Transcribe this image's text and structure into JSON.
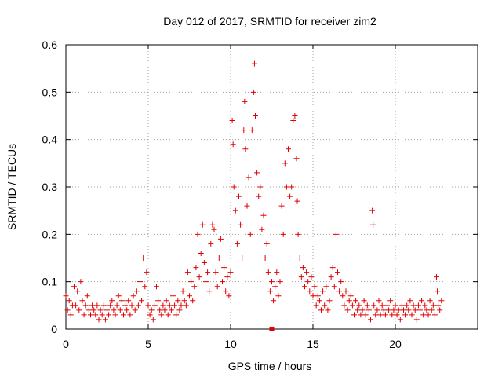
{
  "chart_data": {
    "type": "scatter",
    "title": "Day 012 of 2017, SRMTID for receiver zim2",
    "xlabel": "GPS time / hours",
    "ylabel": "SRMTID / TECUs",
    "xlim": [
      0,
      25
    ],
    "ylim": [
      0,
      0.6
    ],
    "xticks": [
      0,
      5,
      10,
      15,
      20
    ],
    "xtick_labels": [
      "0",
      "5",
      "10",
      "15",
      "20"
    ],
    "yticks": [
      0,
      0.1,
      0.2,
      0.3,
      0.4,
      0.5,
      0.6
    ],
    "ytick_labels": [
      "0",
      "0.1",
      "0.2",
      "0.3",
      "0.4",
      "0.5",
      "0.6"
    ],
    "grid": true,
    "marker": "+",
    "color": "#e00000",
    "series": [
      {
        "name": "SRMTID",
        "points": [
          [
            0.0,
            0.07
          ],
          [
            0.1,
            0.04
          ],
          [
            0.2,
            0.06
          ],
          [
            0.3,
            0.03
          ],
          [
            0.4,
            0.05
          ],
          [
            0.5,
            0.09
          ],
          [
            0.6,
            0.05
          ],
          [
            0.7,
            0.08
          ],
          [
            0.8,
            0.04
          ],
          [
            0.9,
            0.1
          ],
          [
            1.0,
            0.06
          ],
          [
            1.1,
            0.03
          ],
          [
            1.2,
            0.05
          ],
          [
            1.3,
            0.07
          ],
          [
            1.4,
            0.04
          ],
          [
            1.5,
            0.03
          ],
          [
            1.6,
            0.05
          ],
          [
            1.7,
            0.04
          ],
          [
            1.8,
            0.03
          ],
          [
            1.9,
            0.05
          ],
          [
            2.0,
            0.02
          ],
          [
            2.1,
            0.04
          ],
          [
            2.2,
            0.03
          ],
          [
            2.3,
            0.05
          ],
          [
            2.4,
            0.02
          ],
          [
            2.5,
            0.04
          ],
          [
            2.6,
            0.03
          ],
          [
            2.7,
            0.05
          ],
          [
            2.8,
            0.06
          ],
          [
            2.9,
            0.04
          ],
          [
            3.0,
            0.03
          ],
          [
            3.1,
            0.05
          ],
          [
            3.2,
            0.07
          ],
          [
            3.3,
            0.04
          ],
          [
            3.4,
            0.06
          ],
          [
            3.5,
            0.03
          ],
          [
            3.6,
            0.05
          ],
          [
            3.7,
            0.04
          ],
          [
            3.8,
            0.06
          ],
          [
            3.9,
            0.03
          ],
          [
            4.0,
            0.05
          ],
          [
            4.1,
            0.07
          ],
          [
            4.2,
            0.04
          ],
          [
            4.3,
            0.08
          ],
          [
            4.4,
            0.05
          ],
          [
            4.5,
            0.1
          ],
          [
            4.6,
            0.06
          ],
          [
            4.7,
            0.15
          ],
          [
            4.8,
            0.09
          ],
          [
            4.9,
            0.12
          ],
          [
            5.0,
            0.05
          ],
          [
            5.1,
            0.03
          ],
          [
            5.2,
            0.04
          ],
          [
            5.3,
            0.02
          ],
          [
            5.4,
            0.05
          ],
          [
            5.5,
            0.09
          ],
          [
            5.6,
            0.06
          ],
          [
            5.7,
            0.04
          ],
          [
            5.8,
            0.03
          ],
          [
            5.9,
            0.05
          ],
          [
            6.0,
            0.04
          ],
          [
            6.1,
            0.06
          ],
          [
            6.2,
            0.03
          ],
          [
            6.3,
            0.05
          ],
          [
            6.4,
            0.04
          ],
          [
            6.5,
            0.07
          ],
          [
            6.6,
            0.05
          ],
          [
            6.7,
            0.03
          ],
          [
            6.8,
            0.06
          ],
          [
            6.9,
            0.04
          ],
          [
            7.0,
            0.05
          ],
          [
            7.1,
            0.08
          ],
          [
            7.2,
            0.06
          ],
          [
            7.3,
            0.05
          ],
          [
            7.4,
            0.12
          ],
          [
            7.5,
            0.07
          ],
          [
            7.6,
            0.1
          ],
          [
            7.7,
            0.06
          ],
          [
            7.8,
            0.09
          ],
          [
            7.9,
            0.13
          ],
          [
            8.0,
            0.2
          ],
          [
            8.1,
            0.11
          ],
          [
            8.2,
            0.16
          ],
          [
            8.3,
            0.22
          ],
          [
            8.4,
            0.14
          ],
          [
            8.5,
            0.1
          ],
          [
            8.6,
            0.12
          ],
          [
            8.7,
            0.08
          ],
          [
            8.8,
            0.18
          ],
          [
            8.9,
            0.22
          ],
          [
            9.0,
            0.21
          ],
          [
            9.1,
            0.12
          ],
          [
            9.2,
            0.09
          ],
          [
            9.3,
            0.15
          ],
          [
            9.4,
            0.19
          ],
          [
            9.5,
            0.1
          ],
          [
            9.6,
            0.13
          ],
          [
            9.7,
            0.08
          ],
          [
            9.8,
            0.11
          ],
          [
            9.9,
            0.07
          ],
          [
            10.0,
            0.12
          ],
          [
            10.1,
            0.44
          ],
          [
            10.15,
            0.39
          ],
          [
            10.2,
            0.3
          ],
          [
            10.3,
            0.25
          ],
          [
            10.4,
            0.18
          ],
          [
            10.5,
            0.28
          ],
          [
            10.6,
            0.22
          ],
          [
            10.7,
            0.15
          ],
          [
            10.8,
            0.42
          ],
          [
            10.85,
            0.48
          ],
          [
            10.9,
            0.38
          ],
          [
            11.0,
            0.26
          ],
          [
            11.1,
            0.32
          ],
          [
            11.2,
            0.2
          ],
          [
            11.3,
            0.42
          ],
          [
            11.4,
            0.5
          ],
          [
            11.45,
            0.56
          ],
          [
            11.5,
            0.45
          ],
          [
            11.6,
            0.33
          ],
          [
            11.7,
            0.28
          ],
          [
            11.8,
            0.3
          ],
          [
            11.9,
            0.21
          ],
          [
            12.0,
            0.24
          ],
          [
            12.1,
            0.15
          ],
          [
            12.2,
            0.18
          ],
          [
            12.3,
            0.12
          ],
          [
            12.4,
            0.08
          ],
          [
            12.5,
            0.1
          ],
          [
            12.6,
            0.06
          ],
          [
            12.7,
            0.09
          ],
          [
            12.8,
            0.12
          ],
          [
            12.9,
            0.07
          ],
          [
            13.0,
            0.1
          ],
          [
            13.1,
            0.26
          ],
          [
            13.2,
            0.2
          ],
          [
            13.3,
            0.35
          ],
          [
            13.4,
            0.3
          ],
          [
            13.5,
            0.38
          ],
          [
            13.6,
            0.28
          ],
          [
            13.7,
            0.3
          ],
          [
            13.8,
            0.44
          ],
          [
            13.9,
            0.45
          ],
          [
            14.0,
            0.36
          ],
          [
            14.05,
            0.27
          ],
          [
            14.1,
            0.2
          ],
          [
            14.2,
            0.15
          ],
          [
            14.3,
            0.11
          ],
          [
            14.4,
            0.13
          ],
          [
            14.5,
            0.09
          ],
          [
            14.6,
            0.12
          ],
          [
            14.7,
            0.1
          ],
          [
            14.8,
            0.08
          ],
          [
            14.9,
            0.11
          ],
          [
            15.0,
            0.07
          ],
          [
            15.1,
            0.09
          ],
          [
            15.2,
            0.05
          ],
          [
            15.3,
            0.07
          ],
          [
            15.4,
            0.06
          ],
          [
            15.5,
            0.04
          ],
          [
            15.6,
            0.08
          ],
          [
            15.7,
            0.05
          ],
          [
            15.8,
            0.09
          ],
          [
            15.9,
            0.04
          ],
          [
            16.0,
            0.06
          ],
          [
            16.1,
            0.11
          ],
          [
            16.2,
            0.13
          ],
          [
            16.3,
            0.09
          ],
          [
            16.4,
            0.2
          ],
          [
            16.5,
            0.12
          ],
          [
            16.6,
            0.08
          ],
          [
            16.7,
            0.1
          ],
          [
            16.8,
            0.07
          ],
          [
            16.9,
            0.05
          ],
          [
            17.0,
            0.08
          ],
          [
            17.1,
            0.04
          ],
          [
            17.2,
            0.06
          ],
          [
            17.3,
            0.07
          ],
          [
            17.4,
            0.05
          ],
          [
            17.5,
            0.03
          ],
          [
            17.6,
            0.06
          ],
          [
            17.7,
            0.04
          ],
          [
            17.8,
            0.05
          ],
          [
            17.9,
            0.03
          ],
          [
            18.0,
            0.04
          ],
          [
            18.1,
            0.06
          ],
          [
            18.2,
            0.03
          ],
          [
            18.3,
            0.05
          ],
          [
            18.4,
            0.04
          ],
          [
            18.5,
            0.02
          ],
          [
            18.6,
            0.25
          ],
          [
            18.65,
            0.22
          ],
          [
            18.7,
            0.05
          ],
          [
            18.8,
            0.03
          ],
          [
            18.9,
            0.04
          ],
          [
            19.0,
            0.06
          ],
          [
            19.1,
            0.03
          ],
          [
            19.2,
            0.05
          ],
          [
            19.3,
            0.04
          ],
          [
            19.4,
            0.03
          ],
          [
            19.5,
            0.05
          ],
          [
            19.6,
            0.04
          ],
          [
            19.7,
            0.06
          ],
          [
            19.8,
            0.03
          ],
          [
            19.9,
            0.04
          ],
          [
            20.0,
            0.05
          ],
          [
            20.1,
            0.03
          ],
          [
            20.2,
            0.04
          ],
          [
            20.3,
            0.02
          ],
          [
            20.4,
            0.05
          ],
          [
            20.5,
            0.04
          ],
          [
            20.6,
            0.03
          ],
          [
            20.7,
            0.05
          ],
          [
            20.8,
            0.04
          ],
          [
            20.9,
            0.06
          ],
          [
            21.0,
            0.03
          ],
          [
            21.1,
            0.05
          ],
          [
            21.2,
            0.04
          ],
          [
            21.3,
            0.02
          ],
          [
            21.4,
            0.05
          ],
          [
            21.5,
            0.04
          ],
          [
            21.6,
            0.06
          ],
          [
            21.7,
            0.03
          ],
          [
            21.8,
            0.05
          ],
          [
            21.9,
            0.04
          ],
          [
            22.0,
            0.03
          ],
          [
            22.1,
            0.06
          ],
          [
            22.2,
            0.04
          ],
          [
            22.3,
            0.05
          ],
          [
            22.4,
            0.03
          ],
          [
            22.5,
            0.11
          ],
          [
            22.55,
            0.08
          ],
          [
            22.6,
            0.05
          ],
          [
            22.7,
            0.04
          ],
          [
            22.8,
            0.06
          ]
        ]
      }
    ],
    "annotations": [
      {
        "type": "square-marker",
        "x": 12.5,
        "y": 0.0
      }
    ]
  }
}
